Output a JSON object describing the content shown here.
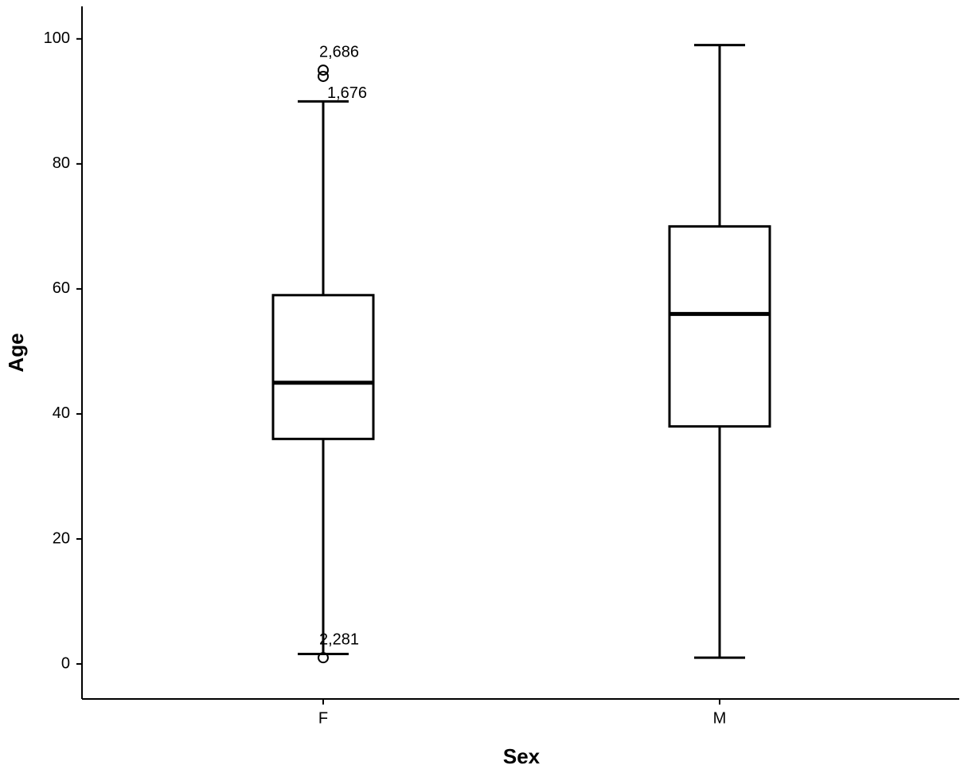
{
  "chart_data": {
    "type": "box",
    "x_label": "Sex",
    "y_label": "Age",
    "categories": [
      "F",
      "M"
    ],
    "boxes": [
      {
        "whislo": 1.6,
        "q1": 36,
        "med": 45,
        "q3": 59,
        "whishi": 90,
        "fliers": [
          95,
          94,
          1
        ],
        "flier_labels": [
          "2,686",
          "1,676",
          "2,281"
        ]
      },
      {
        "whislo": 1,
        "q1": 38,
        "med": 56,
        "q3": 70,
        "whishi": 99
      }
    ],
    "ylim": [
      -5.6,
      105.2
    ],
    "yticks": [
      0,
      20,
      40,
      60,
      80,
      100
    ],
    "color": "#000000"
  }
}
